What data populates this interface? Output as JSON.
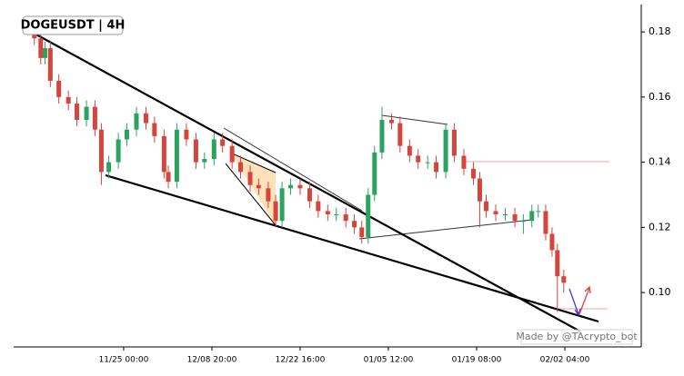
{
  "chart_data": {
    "type": "candlestick",
    "title": "DOGEUSDT | 4H",
    "watermark": "Made by @TAcrypto_bot",
    "up_color": "#2ca25f",
    "down_color": "#d6453d",
    "xlim": [
      -103.5,
      486.9
    ],
    "ylim": [
      0.0833,
      0.1884
    ],
    "xticks": [
      {
        "value": 0,
        "label": "11/25 00:00"
      },
      {
        "value": 83,
        "label": "12/08 20:00"
      },
      {
        "value": 166,
        "label": "12/22 16:00"
      },
      {
        "value": 249,
        "label": "01/05 12:00"
      },
      {
        "value": 332,
        "label": "01/19 08:00"
      },
      {
        "value": 415,
        "label": "02/02 04:00"
      }
    ],
    "yticks": [
      {
        "value": 0.1,
        "label": "0.10"
      },
      0.12,
      0.14,
      0.16,
      0.18
    ],
    "x": [
      -84,
      -78,
      -74,
      -69,
      -61,
      -52,
      -44,
      -35,
      -27,
      -21,
      -14,
      -5,
      3,
      12,
      21,
      29,
      38,
      42,
      50,
      59,
      68,
      76,
      85,
      93,
      102,
      110,
      119,
      127,
      136,
      143,
      149,
      157,
      166,
      175,
      183,
      192,
      200,
      209,
      217,
      224,
      230,
      236,
      243,
      252,
      260,
      269,
      277,
      286,
      294,
      303,
      311,
      320,
      329,
      335,
      341,
      350,
      359,
      368,
      376,
      384,
      390,
      397,
      403,
      408,
      414
    ],
    "open": [
      0.18,
      0.178,
      0.172,
      0.175,
      0.165,
      0.16,
      0.158,
      0.153,
      0.157,
      0.15,
      0.137,
      0.14,
      0.147,
      0.15,
      0.155,
      0.152,
      0.148,
      0.137,
      0.134,
      0.15,
      0.147,
      0.14,
      0.141,
      0.147,
      0.145,
      0.14,
      0.137,
      0.133,
      0.132,
      0.128,
      0.122,
      0.132,
      0.133,
      0.132,
      0.128,
      0.125,
      0.124,
      0.124,
      0.122,
      0.12,
      0.117,
      0.13,
      0.143,
      0.153,
      0.152,
      0.145,
      0.142,
      0.14,
      0.14,
      0.137,
      0.15,
      0.142,
      0.138,
      0.135,
      0.128,
      0.125,
      0.124,
      0.124,
      0.122,
      0.122,
      0.125,
      0.125,
      0.118,
      0.113,
      0.105
    ],
    "high": [
      0.182,
      0.18,
      0.177,
      0.177,
      0.167,
      0.162,
      0.16,
      0.159,
      0.159,
      0.152,
      0.142,
      0.149,
      0.152,
      0.157,
      0.157,
      0.154,
      0.15,
      0.139,
      0.152,
      0.152,
      0.149,
      0.143,
      0.149,
      0.149,
      0.147,
      0.142,
      0.139,
      0.135,
      0.134,
      0.13,
      0.134,
      0.135,
      0.135,
      0.134,
      0.13,
      0.127,
      0.126,
      0.126,
      0.124,
      0.122,
      0.132,
      0.145,
      0.157,
      0.155,
      0.154,
      0.147,
      0.144,
      0.142,
      0.142,
      0.152,
      0.152,
      0.144,
      0.14,
      0.137,
      0.13,
      0.127,
      0.126,
      0.126,
      0.124,
      0.127,
      0.127,
      0.127,
      0.12,
      0.115,
      0.107
    ],
    "low": [
      0.176,
      0.17,
      0.17,
      0.163,
      0.158,
      0.156,
      0.151,
      0.151,
      0.148,
      0.133,
      0.135,
      0.138,
      0.145,
      0.148,
      0.15,
      0.146,
      0.135,
      0.132,
      0.132,
      0.145,
      0.138,
      0.138,
      0.139,
      0.143,
      0.138,
      0.135,
      0.131,
      0.13,
      0.126,
      0.12,
      0.12,
      0.13,
      0.13,
      0.126,
      0.123,
      0.122,
      0.122,
      0.12,
      0.118,
      0.115,
      0.115,
      0.128,
      0.141,
      0.15,
      0.143,
      0.14,
      0.138,
      0.138,
      0.135,
      0.135,
      0.14,
      0.136,
      0.133,
      0.12,
      0.123,
      0.122,
      0.122,
      0.12,
      0.118,
      0.12,
      0.123,
      0.116,
      0.111,
      0.094,
      0.1
    ],
    "close": [
      0.178,
      0.172,
      0.175,
      0.165,
      0.16,
      0.158,
      0.153,
      0.157,
      0.15,
      0.137,
      0.14,
      0.147,
      0.15,
      0.155,
      0.152,
      0.148,
      0.137,
      0.134,
      0.15,
      0.147,
      0.14,
      0.141,
      0.147,
      0.145,
      0.14,
      0.137,
      0.133,
      0.132,
      0.128,
      0.122,
      0.132,
      0.133,
      0.132,
      0.128,
      0.125,
      0.124,
      0.124,
      0.122,
      0.12,
      0.117,
      0.13,
      0.143,
      0.153,
      0.152,
      0.145,
      0.142,
      0.14,
      0.14,
      0.137,
      0.15,
      0.142,
      0.138,
      0.135,
      0.128,
      0.125,
      0.124,
      0.124,
      0.122,
      0.122,
      0.125,
      0.125,
      0.118,
      0.113,
      0.105,
      0.103
    ]
  }
}
